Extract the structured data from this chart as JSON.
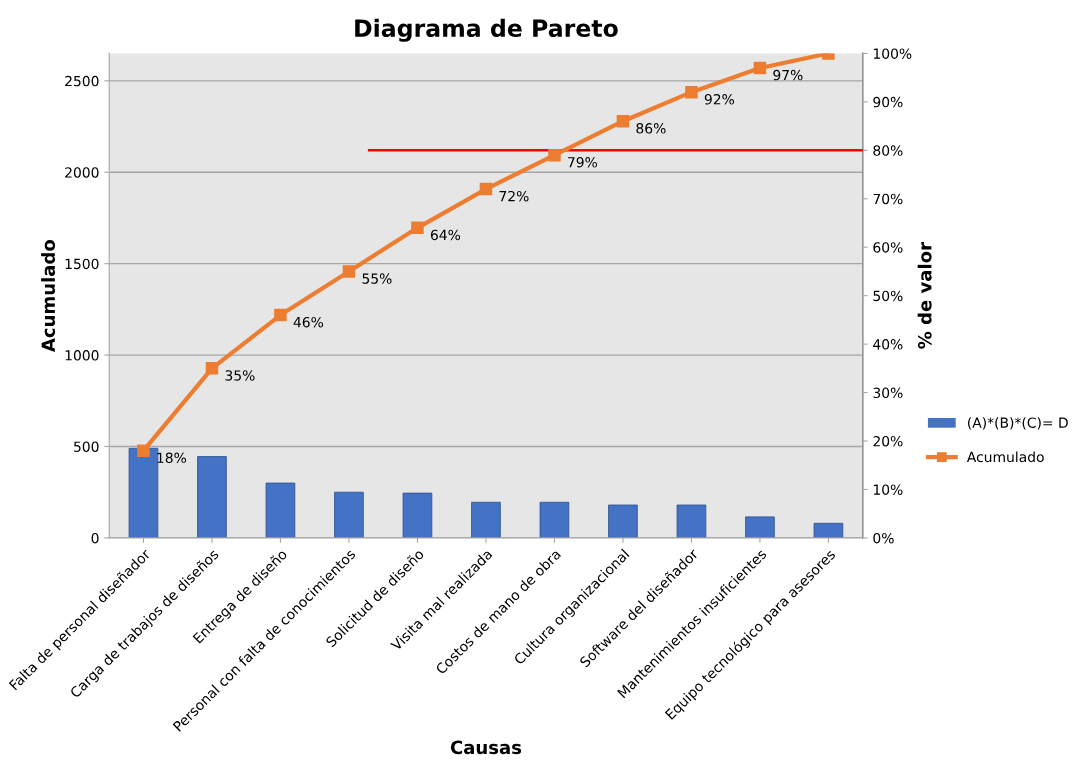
{
  "chart_data": {
    "type": "bar",
    "title": "Diagrama de Pareto",
    "xlabel": "Causas",
    "ylabel": "Acumulado",
    "y2label": "% de valor",
    "categories": [
      "Falta de personal diseñador",
      "Carga de trabajos de diseños",
      "Entrega de diseño",
      "Personal con falta de conocimientos",
      "Solicitud de diseño",
      "Visita mal realizada",
      "Costos de mano de obra",
      "Cultura organizacional",
      "Software del diseñador",
      "Mantenimientos insuficientes",
      "Equipo tecnológico para asesores"
    ],
    "series": [
      {
        "name": "(A)*(B)*(C)= D",
        "color": "#4472c4",
        "values": [
          490,
          445,
          300,
          250,
          245,
          195,
          195,
          180,
          180,
          115,
          80
        ]
      },
      {
        "name": "Acumulado",
        "type": "line",
        "color": "#ed7d31",
        "marker": "square",
        "axis": "y2",
        "values": [
          18,
          35,
          46,
          55,
          64,
          72,
          79,
          86,
          92,
          97,
          100
        ],
        "value_labels": [
          "18%",
          "35%",
          "46%",
          "55%",
          "64%",
          "72%",
          "79%",
          "86%",
          "92%",
          "97%",
          null
        ]
      }
    ],
    "ylim": [
      0,
      2650
    ],
    "yticks": [
      0,
      500,
      1000,
      1500,
      2000,
      2500
    ],
    "y2lim": [
      0,
      100
    ],
    "y2ticks": [
      {
        "value": 0,
        "label": "0%"
      },
      {
        "value": 10,
        "label": "10%"
      },
      {
        "value": 20,
        "label": "20%"
      },
      {
        "value": 30,
        "label": "30%"
      },
      {
        "value": 40,
        "label": "40%"
      },
      {
        "value": 50,
        "label": "50%"
      },
      {
        "value": 60,
        "label": "60%"
      },
      {
        "value": 70,
        "label": "70%"
      },
      {
        "value": 80,
        "label": "80%"
      },
      {
        "value": 90,
        "label": "90%"
      },
      {
        "value": 100,
        "label": "100%"
      }
    ],
    "ref_lines": [
      {
        "axis": "y2",
        "value": 80,
        "color": "#ff0000",
        "line_style": "solid"
      }
    ],
    "grid": "y",
    "legend": "right"
  }
}
